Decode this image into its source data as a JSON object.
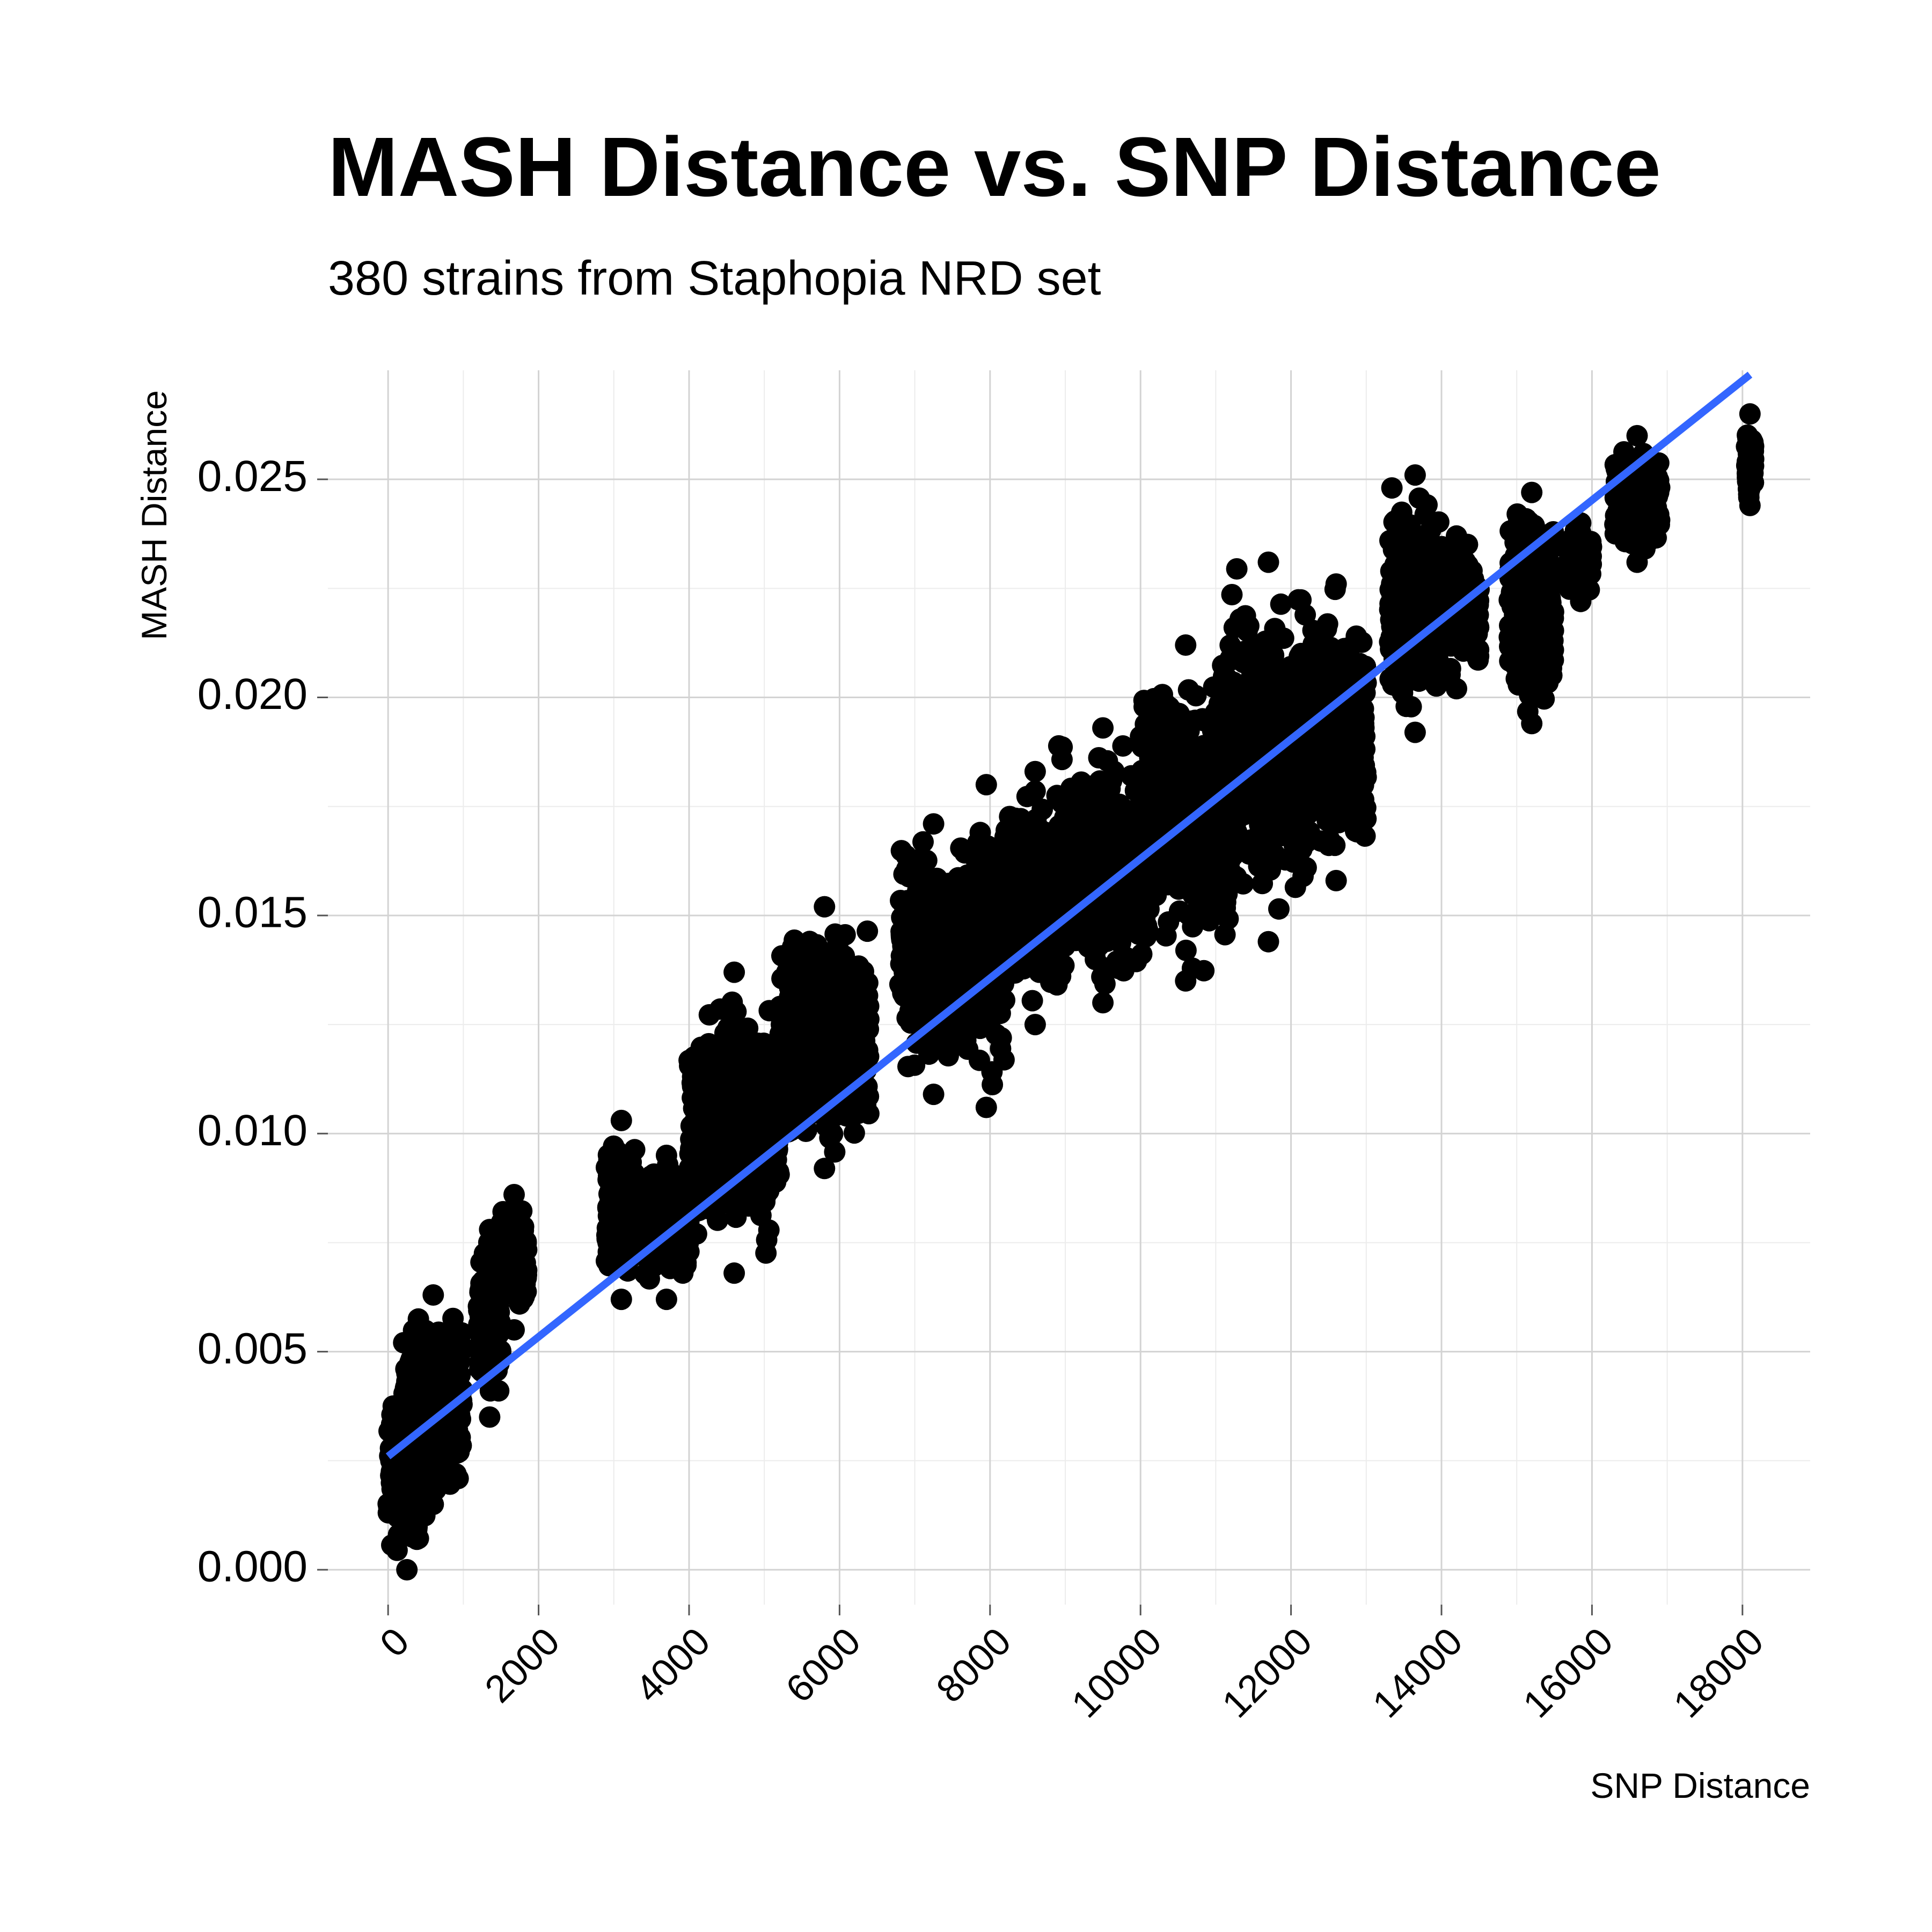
{
  "chart_data": {
    "type": "scatter",
    "title": "MASH Distance vs. SNP Distance",
    "subtitle": "380 strains from Staphopia NRD set",
    "xlabel": "SNP Distance",
    "ylabel": "MASH Distance",
    "xlim": [
      -800,
      18900
    ],
    "ylim": [
      -0.0008,
      0.0275
    ],
    "x_ticks": [
      0,
      2000,
      4000,
      6000,
      8000,
      10000,
      12000,
      14000,
      16000,
      18000
    ],
    "x_tick_labels": [
      "0",
      "2000",
      "4000",
      "6000",
      "8000",
      "10000",
      "12000",
      "14000",
      "16000",
      "18000"
    ],
    "y_ticks": [
      0.0,
      0.005,
      0.01,
      0.015,
      0.02,
      0.025
    ],
    "y_tick_labels": [
      "0.000",
      "0.005",
      "0.010",
      "0.015",
      "0.020",
      "0.025"
    ],
    "grid": true,
    "legend": "none",
    "point_color": "#000000",
    "line_color": "#3366ff",
    "series": [
      {
        "type": "scatter",
        "clusters": [
          {
            "x_min": 0,
            "x_max": 500,
            "y_min": 0.0,
            "y_max": 0.0045
          },
          {
            "x_min": 200,
            "x_max": 1000,
            "y_min": 0.0015,
            "y_max": 0.0063
          },
          {
            "x_min": 1200,
            "x_max": 1500,
            "y_min": 0.0035,
            "y_max": 0.0078
          },
          {
            "x_min": 1500,
            "x_max": 1850,
            "y_min": 0.0055,
            "y_max": 0.0086
          },
          {
            "x_min": 2900,
            "x_max": 3300,
            "y_min": 0.0062,
            "y_max": 0.0103
          },
          {
            "x_min": 3400,
            "x_max": 4000,
            "y_min": 0.0062,
            "y_max": 0.0095
          },
          {
            "x_min": 4000,
            "x_max": 5200,
            "y_min": 0.0068,
            "y_max": 0.0137
          },
          {
            "x_min": 5200,
            "x_max": 6400,
            "y_min": 0.0092,
            "y_max": 0.0152
          },
          {
            "x_min": 6800,
            "x_max": 7700,
            "y_min": 0.0109,
            "y_max": 0.0171
          },
          {
            "x_min": 7700,
            "x_max": 8200,
            "y_min": 0.0106,
            "y_max": 0.018
          },
          {
            "x_min": 8200,
            "x_max": 9000,
            "y_min": 0.0125,
            "y_max": 0.0183
          },
          {
            "x_min": 8900,
            "x_max": 10100,
            "y_min": 0.013,
            "y_max": 0.0193
          },
          {
            "x_min": 10000,
            "x_max": 11200,
            "y_min": 0.0135,
            "y_max": 0.0212
          },
          {
            "x_min": 11100,
            "x_max": 12300,
            "y_min": 0.0144,
            "y_max": 0.0231
          },
          {
            "x_min": 12200,
            "x_max": 13000,
            "y_min": 0.0158,
            "y_max": 0.0226
          },
          {
            "x_min": 13300,
            "x_max": 14000,
            "y_min": 0.0192,
            "y_max": 0.0251
          },
          {
            "x_min": 13900,
            "x_max": 14500,
            "y_min": 0.0202,
            "y_max": 0.0237
          },
          {
            "x_min": 14900,
            "x_max": 15500,
            "y_min": 0.0194,
            "y_max": 0.0247
          },
          {
            "x_min": 15700,
            "x_max": 16000,
            "y_min": 0.0222,
            "y_max": 0.024
          },
          {
            "x_min": 16300,
            "x_max": 16900,
            "y_min": 0.0231,
            "y_max": 0.026
          },
          {
            "x_min": 18050,
            "x_max": 18150,
            "y_min": 0.0244,
            "y_max": 0.0265
          }
        ]
      },
      {
        "type": "line",
        "fit": "linear",
        "x": [
          0,
          18100
        ],
        "y": [
          0.0026,
          0.0274
        ]
      }
    ]
  }
}
